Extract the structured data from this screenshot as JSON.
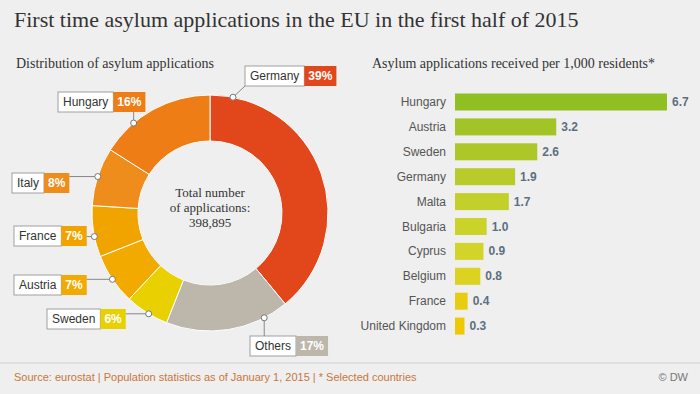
{
  "title": "First time asylum applications in the EU in the first half of 2015",
  "footer": {
    "source": "Source: eurostat | Population statistics as of January 1, 2015 | * Selected countries",
    "credit": "© DW"
  },
  "chart_data": [
    {
      "type": "pie",
      "title": "Distribution of asylum applications",
      "categories": [
        "Germany",
        "Others",
        "Sweden",
        "Austria",
        "France",
        "Italy",
        "Hungary"
      ],
      "values": [
        39,
        17,
        6,
        7,
        7,
        8,
        16
      ],
      "value_labels": [
        "39%",
        "17%",
        "6%",
        "7%",
        "7%",
        "8%",
        "16%"
      ],
      "colors": [
        "#e2471c",
        "#bdb6ab",
        "#e9d000",
        "#f2a900",
        "#f1a300",
        "#ef8d1c",
        "#ee7d16"
      ],
      "data_labels": true,
      "center_text": "Total number of applications:",
      "total": 398895
    },
    {
      "type": "bar",
      "orientation": "horizontal",
      "title": "Asylum applications received per 1,000 residents*",
      "categories": [
        "Hungary",
        "Austria",
        "Sweden",
        "Germany",
        "Malta",
        "Bulgaria",
        "Cyprus",
        "Belgium",
        "France",
        "United Kingdom"
      ],
      "values": [
        6.7,
        3.2,
        2.6,
        1.9,
        1.7,
        1.0,
        0.9,
        0.8,
        0.4,
        0.3
      ],
      "value_labels": [
        "6.7",
        "3.2",
        "2.6",
        "1.9",
        "1.7",
        "1.0",
        "0.9",
        "0.8",
        "0.4",
        "0.3"
      ],
      "colors": [
        "#8fbf22",
        "#a2c426",
        "#adc729",
        "#b8cb2a",
        "#c3cf2a",
        "#cbd22a",
        "#d3d42a",
        "#dcd222",
        "#e7cd12",
        "#efc900"
      ],
      "data_labels": true,
      "tick_labels": "y",
      "xlim": [
        0,
        6.7
      ]
    }
  ]
}
